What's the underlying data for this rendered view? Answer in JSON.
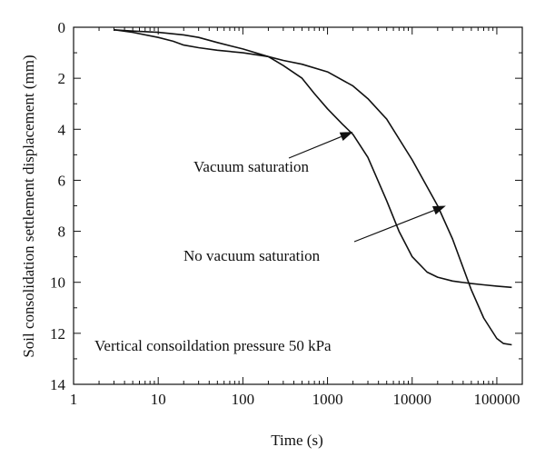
{
  "chart_data": {
    "type": "line",
    "xlabel": "Time (s)",
    "ylabel": "Soil consolidation settlement displacement (mm)",
    "x_scale": "log",
    "xlim": [
      1,
      200000
    ],
    "ylim": [
      0,
      14
    ],
    "y_inverted": true,
    "grid": false,
    "x_ticks": [
      1,
      10,
      100,
      1000,
      10000,
      100000
    ],
    "x_tick_labels": [
      "1",
      "10",
      "100",
      "1000",
      "10000",
      "100000"
    ],
    "y_ticks": [
      0,
      2,
      4,
      6,
      8,
      10,
      12,
      14
    ],
    "y_tick_labels": [
      "0",
      "2",
      "4",
      "6",
      "8",
      "10",
      "12",
      "14"
    ],
    "series": [
      {
        "key": "vacuum",
        "x": [
          3,
          5,
          10,
          15,
          20,
          30,
          50,
          100,
          200,
          300,
          500,
          700,
          1000,
          1500,
          2000,
          3000,
          5000,
          7000,
          10000,
          15000,
          20000,
          30000,
          50000,
          70000,
          100000,
          150000
        ],
        "y": [
          0.1,
          0.2,
          0.4,
          0.55,
          0.7,
          0.8,
          0.9,
          1.0,
          1.15,
          1.5,
          2.0,
          2.6,
          3.2,
          3.8,
          4.2,
          5.1,
          6.8,
          8.0,
          9.0,
          9.6,
          9.8,
          9.95,
          10.05,
          10.1,
          10.15,
          10.2
        ]
      },
      {
        "key": "no-vacuum",
        "x": [
          3,
          5,
          10,
          20,
          30,
          50,
          100,
          200,
          300,
          500,
          1000,
          2000,
          3000,
          5000,
          10000,
          20000,
          30000,
          50000,
          70000,
          100000,
          120000,
          150000
        ],
        "y": [
          0.1,
          0.15,
          0.2,
          0.3,
          0.4,
          0.6,
          0.85,
          1.15,
          1.3,
          1.45,
          1.75,
          2.3,
          2.8,
          3.6,
          5.2,
          7.0,
          8.3,
          10.3,
          11.4,
          12.2,
          12.4,
          12.45
        ]
      }
    ],
    "annotations": [
      {
        "key": "vac",
        "text": "Vacuum saturation",
        "arrow_to": {
          "x": 2000,
          "y": 4.1
        }
      },
      {
        "key": "novac",
        "text": "No vacuum saturation",
        "arrow_to": {
          "x": 25000,
          "y": 7.0
        }
      },
      {
        "key": "pressure",
        "text": "Vertical consoildation pressure 50 kPa"
      }
    ]
  }
}
